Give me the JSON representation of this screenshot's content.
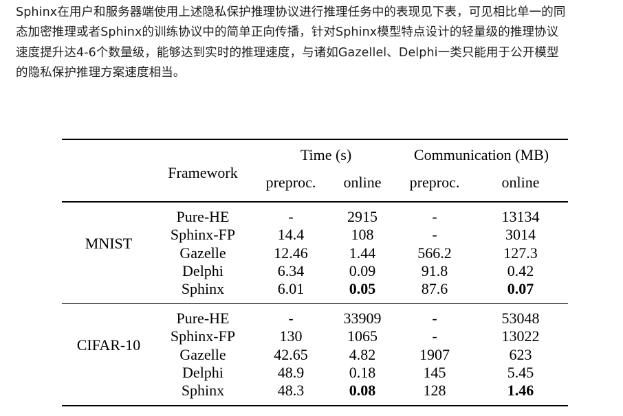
{
  "intro": {
    "lines": [
      "Sphinx在用户和服务器端使用上述隐私保护推理协议进行推理任务中的表现见下表，可见相比单一的同",
      "态加密推理或者Sphinx的训练协议中的简单正向传播，针对Sphinx模型特点设计的轻量级的推理协议",
      "速度提升达4-6个数量级，能够达到实时的推理速度，与诸如Gazellel、Delphi一类只能用于公开模型",
      "的隐私保护推理方案速度相当。"
    ]
  },
  "table": {
    "header": {
      "framework": "Framework",
      "time_group": "Time (s)",
      "comm_group": "Communication (MB)",
      "time_preproc": "preproc.",
      "time_online": "online",
      "comm_preproc": "preproc.",
      "comm_online": "online"
    },
    "groups": [
      {
        "dataset": "MNIST",
        "rows": [
          {
            "framework": "Pure-HE",
            "time_preproc": "-",
            "time_online": "2915",
            "comm_preproc": "-",
            "comm_online": "13134"
          },
          {
            "framework": "Sphinx-FP",
            "time_preproc": "14.4",
            "time_online": "108",
            "comm_preproc": "-",
            "comm_online": "3014"
          },
          {
            "framework": "Gazelle",
            "time_preproc": "12.46",
            "time_online": "1.44",
            "comm_preproc": "566.2",
            "comm_online": "127.3"
          },
          {
            "framework": "Delphi",
            "time_preproc": "6.34",
            "time_online": "0.09",
            "comm_preproc": "91.8",
            "comm_online": "0.42"
          },
          {
            "framework": "Sphinx",
            "time_preproc": "6.01",
            "time_online": "0.05",
            "comm_preproc": "87.6",
            "comm_online": "0.07"
          }
        ]
      },
      {
        "dataset": "CIFAR-10",
        "rows": [
          {
            "framework": "Pure-HE",
            "time_preproc": "-",
            "time_online": "33909",
            "comm_preproc": "-",
            "comm_online": "53048"
          },
          {
            "framework": "Sphinx-FP",
            "time_preproc": "130",
            "time_online": "1065",
            "comm_preproc": "-",
            "comm_online": "13022"
          },
          {
            "framework": "Gazelle",
            "time_preproc": "42.65",
            "time_online": "4.82",
            "comm_preproc": "1907",
            "comm_online": "623"
          },
          {
            "framework": "Delphi",
            "time_preproc": "48.9",
            "time_online": "0.18",
            "comm_preproc": "145",
            "comm_online": "5.45"
          },
          {
            "framework": "Sphinx",
            "time_preproc": "48.3",
            "time_online": "0.08",
            "comm_preproc": "128",
            "comm_online": "1.46"
          }
        ]
      }
    ]
  }
}
